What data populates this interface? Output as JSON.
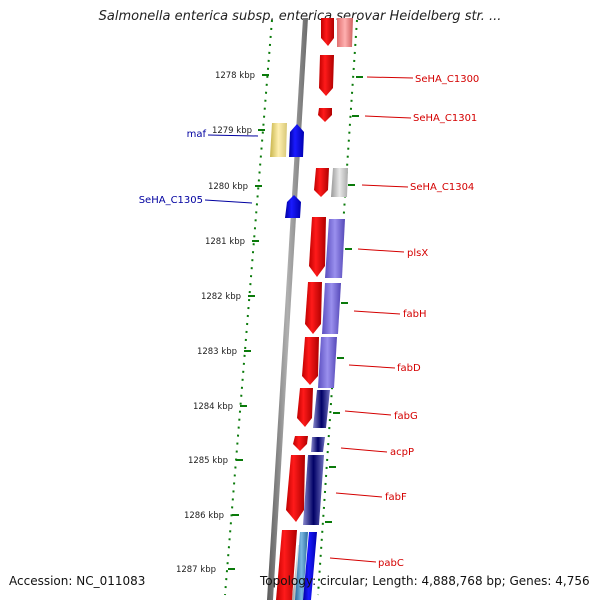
{
  "title": "Salmonella enterica subsp. enterica serovar Heidelberg str. ...",
  "accession_text": "Accession: NC_011083",
  "topology_text": "Topology: circular; Length: 4,888,768 bp; Genes: 4,756",
  "colors": {
    "forward": "#ff0000",
    "reverse": "#0000ff",
    "pseudo_yellow": "#f0e08c",
    "ticks": "#0a7a0a",
    "label_right": "#d40000",
    "label_left": "#0000a0",
    "backbone": "#888888"
  },
  "ticks": [
    "1278 kbp",
    "1279 kbp",
    "1280 kbp",
    "1281 kbp",
    "1282 kbp",
    "1283 kbp",
    "1284 kbp",
    "1285 kbp",
    "1286 kbp",
    "1287 kbp"
  ],
  "genes_right": [
    "SeHA_C1300",
    "SeHA_C1301",
    "SeHA_C1304",
    "plsX",
    "fabH",
    "fabD",
    "fabG",
    "acpP",
    "fabF",
    "pabC"
  ],
  "genes_left": [
    "maf",
    "SeHA_C1305"
  ]
}
